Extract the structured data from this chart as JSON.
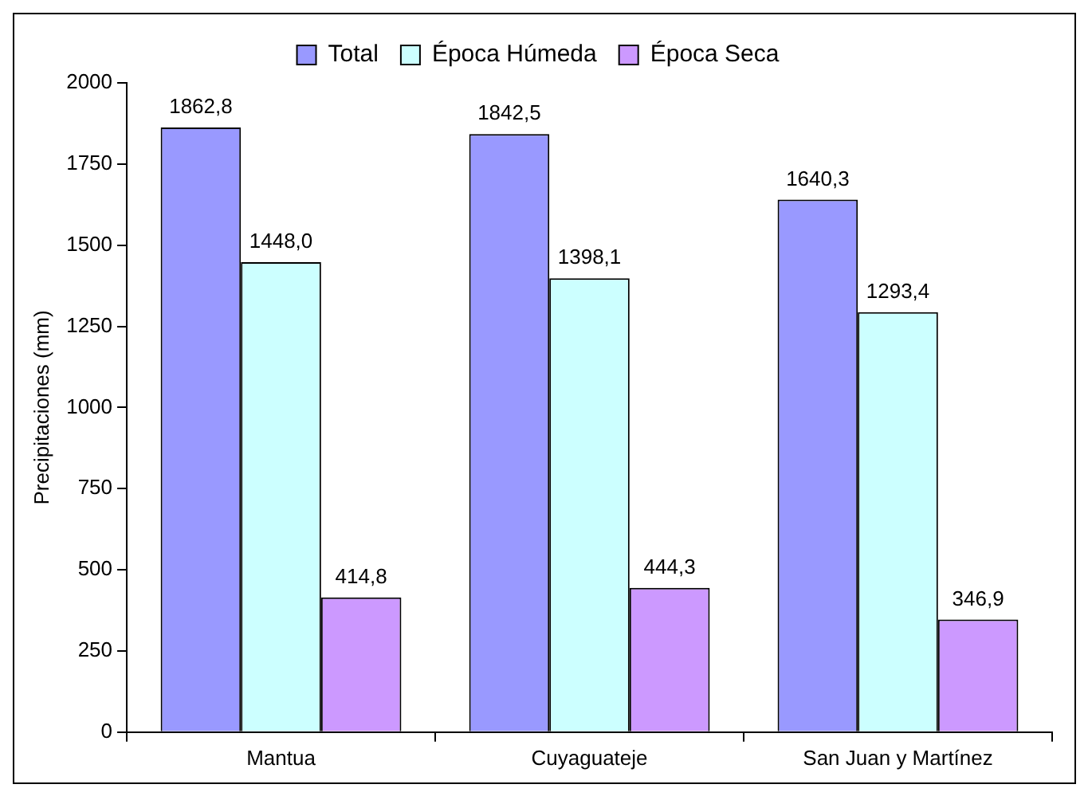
{
  "chart_data": {
    "type": "bar",
    "ylabel": "Precipitaciones (mm)",
    "categories": [
      "Mantua",
      "Cuyaguateje",
      "San Juan y Martínez"
    ],
    "series": [
      {
        "name": "Total",
        "color": "#9999ff",
        "values": [
          1862.8,
          1842.5,
          1640.3
        ],
        "value_labels": [
          "1862,8",
          "1842,5",
          "1640,3"
        ]
      },
      {
        "name": "Época Húmeda",
        "color": "#ccffff",
        "values": [
          1448.0,
          1398.1,
          1293.4
        ],
        "value_labels": [
          "1448,0",
          "1398,1",
          "1293,4"
        ]
      },
      {
        "name": "Época Seca",
        "color": "#cc99ff",
        "values": [
          414.8,
          444.3,
          346.9
        ],
        "value_labels": [
          "414,8",
          "444,3",
          "346,9"
        ]
      }
    ],
    "ylim": [
      0,
      2000
    ],
    "yticks": [
      0,
      250,
      500,
      750,
      1000,
      1250,
      1500,
      1750,
      2000
    ],
    "grid": false,
    "legend": "top"
  }
}
